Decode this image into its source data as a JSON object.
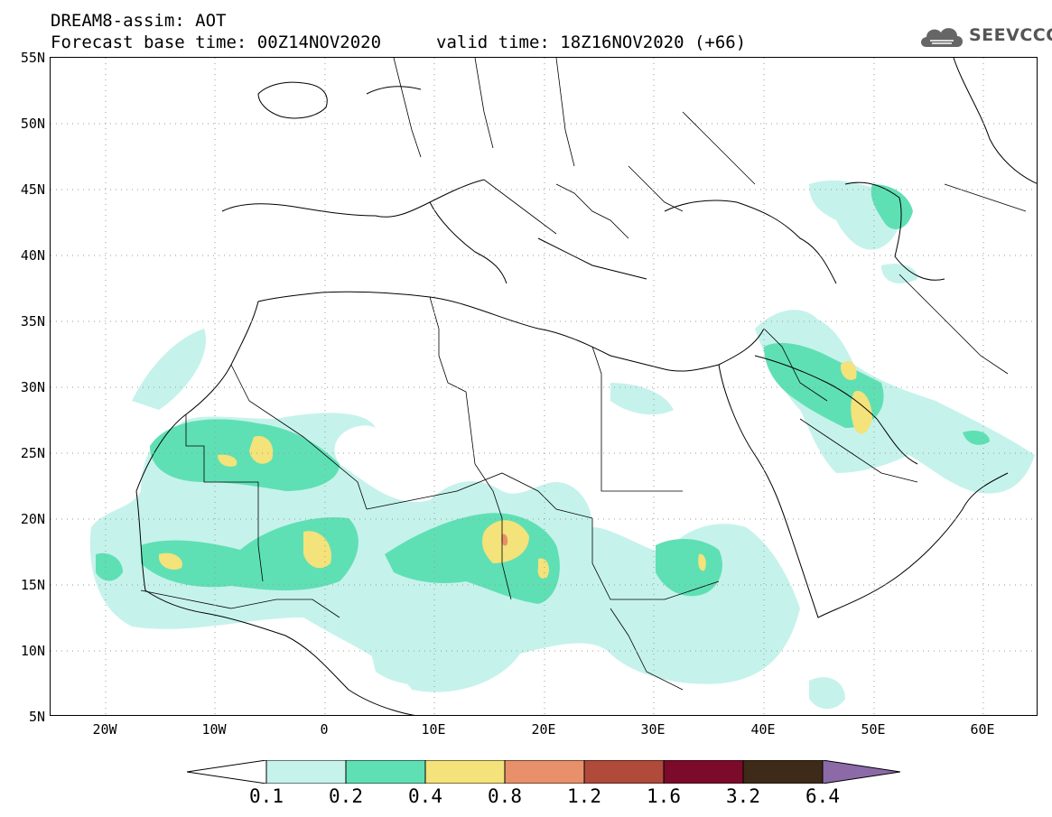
{
  "header": {
    "title_line1": "DREAM8-assim: AOT",
    "title_line2": "Forecast base time: 00Z14NOV2020",
    "valid_time": "valid time: 18Z16NOV2020 (+66)",
    "logo_text": "SEEVCCC"
  },
  "map": {
    "lat_labels": [
      "55N",
      "50N",
      "45N",
      "40N",
      "35N",
      "30N",
      "25N",
      "20N",
      "15N",
      "10N",
      "5N"
    ],
    "lon_labels": [
      "20W",
      "10W",
      "0",
      "10E",
      "20E",
      "30E",
      "40E",
      "50E",
      "60E"
    ]
  },
  "legend": {
    "labels": [
      "0.1",
      "0.2",
      "0.4",
      "0.8",
      "1.2",
      "1.6",
      "3.2",
      "6.4"
    ],
    "colors": [
      "#c6f2ec",
      "#5fe0b4",
      "#f4e27a",
      "#e8906a",
      "#b04a3a",
      "#7c0a2a",
      "#3e2a18",
      "#8c6aa8"
    ]
  }
}
